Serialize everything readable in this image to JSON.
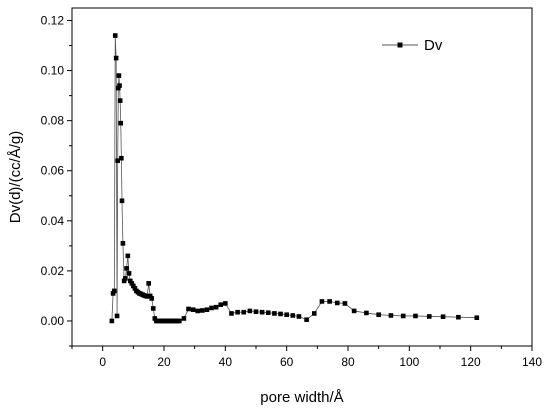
{
  "chart_data": {
    "type": "line",
    "title": "",
    "xlabel": "pore width/Å",
    "ylabel": "Dv(d)/(cc/Å/g)",
    "xlim": [
      -10,
      140
    ],
    "ylim": [
      -0.01,
      0.125
    ],
    "xticks": [
      0,
      20,
      40,
      60,
      80,
      100,
      120,
      140
    ],
    "yticks": [
      0.0,
      0.02,
      0.04,
      0.06,
      0.08,
      0.1,
      0.12
    ],
    "xtick_labels": [
      "0",
      "20",
      "40",
      "60",
      "80",
      "100",
      "120",
      "140"
    ],
    "ytick_labels": [
      "0.00",
      "0.02",
      "0.04",
      "0.06",
      "0.08",
      "0.10",
      "0.12"
    ],
    "grid": false,
    "legend_position": "top-right",
    "series": [
      {
        "name": "Dv",
        "marker": "square",
        "color": "#000000",
        "x": [
          3.0,
          3.4,
          3.8,
          4.1,
          4.4,
          4.7,
          4.9,
          5.1,
          5.3,
          5.5,
          5.7,
          5.9,
          6.1,
          6.3,
          6.6,
          7.0,
          7.4,
          7.8,
          8.2,
          8.6,
          9.0,
          9.5,
          10.0,
          10.5,
          11.0,
          11.5,
          12.0,
          12.5,
          13.0,
          13.5,
          14.0,
          14.5,
          15.0,
          15.5,
          16.0,
          16.5,
          17.0,
          17.5,
          18.0,
          18.5,
          19.0,
          19.5,
          20.0,
          20.5,
          21.0,
          21.5,
          22.0,
          22.5,
          23.0,
          23.5,
          24.0,
          24.5,
          25.0,
          26.5,
          28.0,
          29.5,
          31.0,
          32.5,
          34.0,
          35.5,
          37.0,
          38.5,
          40.0,
          42.0,
          44.0,
          46.0,
          48.0,
          50.0,
          52.0,
          54.0,
          56.0,
          58.0,
          60.0,
          62.0,
          64.0,
          66.5,
          69.0,
          71.5,
          74.0,
          76.5,
          79.0,
          82.0,
          86.0,
          90.0,
          94.0,
          98.0,
          102.0,
          106.5,
          111.0,
          116.0,
          122.0
        ],
        "y": [
          0.0,
          0.011,
          0.012,
          0.114,
          0.105,
          0.002,
          0.064,
          0.093,
          0.098,
          0.094,
          0.088,
          0.079,
          0.065,
          0.048,
          0.031,
          0.016,
          0.017,
          0.021,
          0.026,
          0.019,
          0.016,
          0.015,
          0.014,
          0.013,
          0.012,
          0.0115,
          0.011,
          0.0108,
          0.0105,
          0.0102,
          0.01,
          0.0098,
          0.015,
          0.01,
          0.009,
          0.005,
          0.001,
          0.0,
          0.0,
          0.0,
          0.0,
          0.0,
          0.0,
          0.0,
          0.0,
          0.0,
          0.0,
          0.0,
          0.0,
          0.0,
          0.0,
          0.0,
          0.0,
          0.001,
          0.0048,
          0.0045,
          0.004,
          0.0042,
          0.0045,
          0.0052,
          0.0055,
          0.0065,
          0.007,
          0.003,
          0.0035,
          0.0035,
          0.004,
          0.0037,
          0.0035,
          0.0033,
          0.003,
          0.0028,
          0.0025,
          0.0022,
          0.0018,
          0.0005,
          0.003,
          0.0078,
          0.0078,
          0.0072,
          0.007,
          0.004,
          0.0032,
          0.0025,
          0.0022,
          0.002,
          0.002,
          0.0018,
          0.0017,
          0.0015,
          0.0013
        ]
      }
    ]
  }
}
